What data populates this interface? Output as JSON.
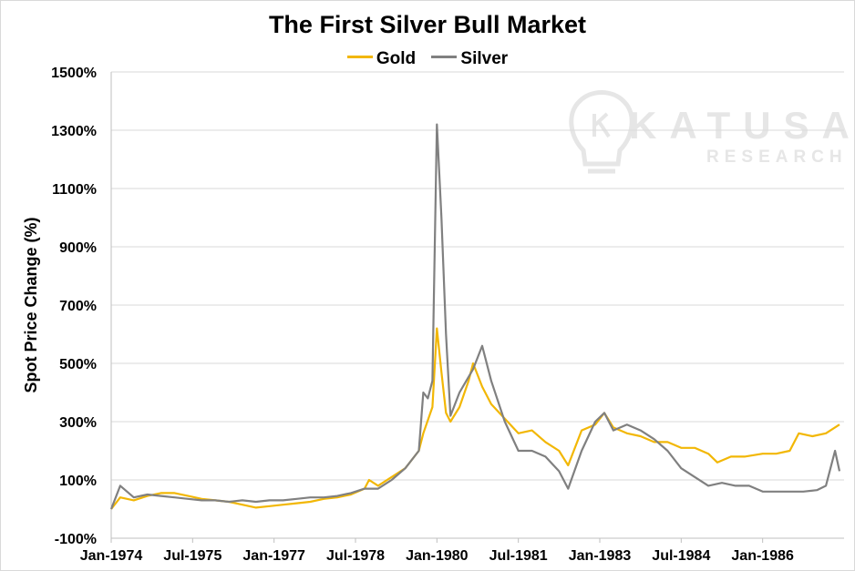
{
  "chart_data": {
    "type": "line",
    "title": "The First Silver Bull Market",
    "xlabel": "",
    "ylabel": "Spot Price Change (%)",
    "ylim": [
      -100,
      1500
    ],
    "y_ticks": [
      "-100%",
      "100%",
      "300%",
      "500%",
      "700%",
      "900%",
      "1100%",
      "1300%",
      "1500%"
    ],
    "x_ticks": [
      "Jan-1974",
      "Jul-1975",
      "Jan-1977",
      "Jul-1978",
      "Jan-1980",
      "Jul-1981",
      "Jan-1983",
      "Jul-1984",
      "Jan-1986"
    ],
    "grid": "horizontal",
    "legend_position": "top",
    "series": [
      {
        "name": "Gold",
        "color": "#f2b705",
        "points": [
          [
            "1974-01",
            0
          ],
          [
            "1974-03",
            40
          ],
          [
            "1974-06",
            30
          ],
          [
            "1974-09",
            45
          ],
          [
            "1974-12",
            55
          ],
          [
            "1975-03",
            55
          ],
          [
            "1975-06",
            45
          ],
          [
            "1975-09",
            35
          ],
          [
            "1975-12",
            30
          ],
          [
            "1976-03",
            25
          ],
          [
            "1976-06",
            15
          ],
          [
            "1976-09",
            5
          ],
          [
            "1976-12",
            10
          ],
          [
            "1977-03",
            15
          ],
          [
            "1977-06",
            20
          ],
          [
            "1977-09",
            25
          ],
          [
            "1977-12",
            35
          ],
          [
            "1978-03",
            40
          ],
          [
            "1978-06",
            50
          ],
          [
            "1978-09",
            70
          ],
          [
            "1978-10",
            100
          ],
          [
            "1978-12",
            80
          ],
          [
            "1979-03",
            110
          ],
          [
            "1979-06",
            140
          ],
          [
            "1979-09",
            200
          ],
          [
            "1979-10",
            260
          ],
          [
            "1979-12",
            350
          ],
          [
            "1980-01",
            620
          ],
          [
            "1980-02",
            470
          ],
          [
            "1980-03",
            330
          ],
          [
            "1980-04",
            300
          ],
          [
            "1980-06",
            350
          ],
          [
            "1980-08",
            440
          ],
          [
            "1980-09",
            500
          ],
          [
            "1980-11",
            420
          ],
          [
            "1981-01",
            360
          ],
          [
            "1981-04",
            310
          ],
          [
            "1981-07",
            260
          ],
          [
            "1981-10",
            270
          ],
          [
            "1982-01",
            230
          ],
          [
            "1982-04",
            200
          ],
          [
            "1982-06",
            150
          ],
          [
            "1982-09",
            270
          ],
          [
            "1982-12",
            290
          ],
          [
            "1983-02",
            330
          ],
          [
            "1983-04",
            280
          ],
          [
            "1983-07",
            260
          ],
          [
            "1983-10",
            250
          ],
          [
            "1984-01",
            230
          ],
          [
            "1984-04",
            230
          ],
          [
            "1984-07",
            210
          ],
          [
            "1984-10",
            210
          ],
          [
            "1985-01",
            190
          ],
          [
            "1985-03",
            160
          ],
          [
            "1985-06",
            180
          ],
          [
            "1985-09",
            180
          ],
          [
            "1986-01",
            190
          ],
          [
            "1986-04",
            190
          ],
          [
            "1986-07",
            200
          ],
          [
            "1986-09",
            260
          ],
          [
            "1986-12",
            250
          ],
          [
            "1987-03",
            260
          ],
          [
            "1987-06",
            290
          ]
        ]
      },
      {
        "name": "Silver",
        "color": "#808080",
        "points": [
          [
            "1974-01",
            0
          ],
          [
            "1974-03",
            80
          ],
          [
            "1974-06",
            40
          ],
          [
            "1974-09",
            50
          ],
          [
            "1974-12",
            45
          ],
          [
            "1975-03",
            40
          ],
          [
            "1975-06",
            35
          ],
          [
            "1975-09",
            30
          ],
          [
            "1975-12",
            30
          ],
          [
            "1976-03",
            25
          ],
          [
            "1976-06",
            30
          ],
          [
            "1976-09",
            25
          ],
          [
            "1976-12",
            30
          ],
          [
            "1977-03",
            30
          ],
          [
            "1977-06",
            35
          ],
          [
            "1977-09",
            40
          ],
          [
            "1977-12",
            40
          ],
          [
            "1978-03",
            45
          ],
          [
            "1978-06",
            55
          ],
          [
            "1978-09",
            70
          ],
          [
            "1978-12",
            70
          ],
          [
            "1979-03",
            100
          ],
          [
            "1979-06",
            140
          ],
          [
            "1979-09",
            200
          ],
          [
            "1979-10",
            400
          ],
          [
            "1979-11",
            380
          ],
          [
            "1979-12",
            440
          ],
          [
            "1980-01",
            1320
          ],
          [
            "1980-02",
            1000
          ],
          [
            "1980-03",
            600
          ],
          [
            "1980-04",
            320
          ],
          [
            "1980-06",
            400
          ],
          [
            "1980-09",
            480
          ],
          [
            "1980-11",
            560
          ],
          [
            "1981-01",
            440
          ],
          [
            "1981-04",
            300
          ],
          [
            "1981-07",
            200
          ],
          [
            "1981-10",
            200
          ],
          [
            "1982-01",
            180
          ],
          [
            "1982-04",
            130
          ],
          [
            "1982-06",
            70
          ],
          [
            "1982-09",
            200
          ],
          [
            "1982-12",
            300
          ],
          [
            "1983-02",
            330
          ],
          [
            "1983-04",
            270
          ],
          [
            "1983-07",
            290
          ],
          [
            "1983-10",
            270
          ],
          [
            "1984-01",
            240
          ],
          [
            "1984-04",
            200
          ],
          [
            "1984-07",
            140
          ],
          [
            "1984-10",
            110
          ],
          [
            "1985-01",
            80
          ],
          [
            "1985-04",
            90
          ],
          [
            "1985-07",
            80
          ],
          [
            "1985-10",
            80
          ],
          [
            "1986-01",
            60
          ],
          [
            "1986-04",
            60
          ],
          [
            "1986-07",
            60
          ],
          [
            "1986-10",
            60
          ],
          [
            "1987-01",
            65
          ],
          [
            "1987-03",
            80
          ],
          [
            "1987-05",
            200
          ],
          [
            "1987-06",
            130
          ]
        ]
      }
    ]
  },
  "watermark": {
    "brand": "KATUSA",
    "sub": "RESEARCH",
    "icon": "lightbulb-icon",
    "color": "#e6e6e6"
  }
}
